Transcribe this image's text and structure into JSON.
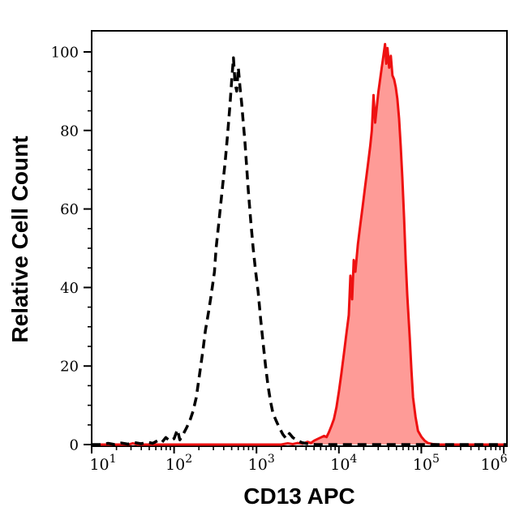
{
  "figure": {
    "background_color": "#ffffff",
    "frame_color": "#000000",
    "tick_color": "#000000",
    "text_color": "#000000"
  },
  "chart_data": {
    "type": "area",
    "title": "",
    "xlabel": "CD13 APC",
    "ylabel": "Relative Cell Count",
    "x_scale": "log10",
    "x_range_log10": [
      1.0,
      6.04
    ],
    "ylim": [
      0,
      105
    ],
    "grid": false,
    "legend": "none",
    "y_ticks": [
      0,
      20,
      40,
      60,
      80,
      100
    ],
    "y_minor_tick_step": 5,
    "x_ticks": [
      {
        "base": "10",
        "exp": "1",
        "log": 1
      },
      {
        "base": "10",
        "exp": "2",
        "log": 2
      },
      {
        "base": "10",
        "exp": "3",
        "log": 3
      },
      {
        "base": "10",
        "exp": "4",
        "log": 4
      },
      {
        "base": "10",
        "exp": "5",
        "log": 5
      },
      {
        "base": "10",
        "exp": "6",
        "log": 6
      }
    ],
    "series": [
      {
        "name": "CD13 APC stained cells (red filled histogram)",
        "type": "area",
        "line_style": "solid",
        "color": "#ee1111",
        "fill": "#fe9b97",
        "points_log10x_y": [
          [
            1.0,
            0
          ],
          [
            1.45,
            0
          ],
          [
            1.5,
            0.3
          ],
          [
            1.56,
            0
          ],
          [
            2.2,
            0
          ],
          [
            3.0,
            0
          ],
          [
            3.3,
            0
          ],
          [
            3.38,
            0.3
          ],
          [
            3.44,
            0.1
          ],
          [
            3.5,
            0.4
          ],
          [
            3.56,
            0.2
          ],
          [
            3.62,
            0.7
          ],
          [
            3.66,
            0.4
          ],
          [
            3.7,
            1.0
          ],
          [
            3.74,
            1.4
          ],
          [
            3.78,
            1.8
          ],
          [
            3.82,
            2.2
          ],
          [
            3.85,
            1.9
          ],
          [
            3.88,
            3.2
          ],
          [
            3.91,
            4.8
          ],
          [
            3.94,
            6.5
          ],
          [
            3.97,
            9.5
          ],
          [
            4.0,
            13.5
          ],
          [
            4.03,
            18
          ],
          [
            4.06,
            23
          ],
          [
            4.09,
            28
          ],
          [
            4.12,
            33
          ],
          [
            4.14,
            43
          ],
          [
            4.16,
            37
          ],
          [
            4.18,
            47
          ],
          [
            4.2,
            44
          ],
          [
            4.23,
            51
          ],
          [
            4.26,
            56
          ],
          [
            4.29,
            61
          ],
          [
            4.32,
            66
          ],
          [
            4.35,
            71
          ],
          [
            4.38,
            76
          ],
          [
            4.4,
            80
          ],
          [
            4.42,
            89
          ],
          [
            4.44,
            82
          ],
          [
            4.46,
            86
          ],
          [
            4.48,
            90
          ],
          [
            4.5,
            93
          ],
          [
            4.52,
            96
          ],
          [
            4.54,
            99
          ],
          [
            4.56,
            102
          ],
          [
            4.575,
            97
          ],
          [
            4.59,
            101
          ],
          [
            4.61,
            96
          ],
          [
            4.63,
            99
          ],
          [
            4.65,
            94
          ],
          [
            4.67,
            93
          ],
          [
            4.69,
            91
          ],
          [
            4.71,
            88
          ],
          [
            4.73,
            83
          ],
          [
            4.75,
            76
          ],
          [
            4.77,
            68
          ],
          [
            4.79,
            58
          ],
          [
            4.81,
            47
          ],
          [
            4.83,
            38
          ],
          [
            4.86,
            27
          ],
          [
            4.88,
            19
          ],
          [
            4.9,
            12
          ],
          [
            4.93,
            7
          ],
          [
            4.96,
            3.5
          ],
          [
            5.0,
            2
          ],
          [
            5.04,
            1
          ],
          [
            5.08,
            0.4
          ],
          [
            5.14,
            0.1
          ],
          [
            5.2,
            0
          ],
          [
            6.04,
            0
          ]
        ]
      },
      {
        "name": "control (black dashed histogram)",
        "type": "line",
        "line_style": "dashed",
        "color": "#000000",
        "fill": "none",
        "points_log10x_y": [
          [
            1.0,
            0
          ],
          [
            1.12,
            0
          ],
          [
            1.2,
            0.3
          ],
          [
            1.28,
            0
          ],
          [
            1.36,
            0.4
          ],
          [
            1.44,
            0.1
          ],
          [
            1.52,
            0.5
          ],
          [
            1.6,
            0.2
          ],
          [
            1.68,
            0.6
          ],
          [
            1.74,
            0.3
          ],
          [
            1.8,
            1.0
          ],
          [
            1.85,
            0.5
          ],
          [
            1.9,
            1.8
          ],
          [
            1.95,
            0.9
          ],
          [
            2.0,
            1.5
          ],
          [
            2.04,
            3.8
          ],
          [
            2.07,
            1.2
          ],
          [
            2.11,
            2.6
          ],
          [
            2.15,
            4.2
          ],
          [
            2.19,
            6
          ],
          [
            2.23,
            8.5
          ],
          [
            2.27,
            12
          ],
          [
            2.31,
            18
          ],
          [
            2.35,
            24
          ],
          [
            2.38,
            29
          ],
          [
            2.42,
            34
          ],
          [
            2.45,
            38
          ],
          [
            2.49,
            44
          ],
          [
            2.51,
            50
          ],
          [
            2.54,
            56
          ],
          [
            2.56,
            60
          ],
          [
            2.59,
            66
          ],
          [
            2.62,
            72
          ],
          [
            2.65,
            79
          ],
          [
            2.68,
            87
          ],
          [
            2.7,
            93
          ],
          [
            2.72,
            98.5
          ],
          [
            2.74,
            92
          ],
          [
            2.76,
            90
          ],
          [
            2.78,
            96
          ],
          [
            2.8,
            91
          ],
          [
            2.82,
            87
          ],
          [
            2.84,
            82
          ],
          [
            2.86,
            77
          ],
          [
            2.88,
            71
          ],
          [
            2.9,
            65
          ],
          [
            2.93,
            57
          ],
          [
            2.96,
            50
          ],
          [
            2.99,
            44
          ],
          [
            3.02,
            39
          ],
          [
            3.05,
            32
          ],
          [
            3.08,
            26
          ],
          [
            3.11,
            20
          ],
          [
            3.14,
            15
          ],
          [
            3.17,
            11
          ],
          [
            3.2,
            8
          ],
          [
            3.24,
            6
          ],
          [
            3.28,
            4.2
          ],
          [
            3.32,
            2.6
          ],
          [
            3.36,
            1.5
          ],
          [
            3.4,
            2.8
          ],
          [
            3.44,
            1.8
          ],
          [
            3.49,
            1.1
          ],
          [
            3.55,
            0.5
          ],
          [
            3.62,
            0.2
          ],
          [
            3.72,
            0
          ],
          [
            6.04,
            0
          ]
        ]
      }
    ]
  }
}
